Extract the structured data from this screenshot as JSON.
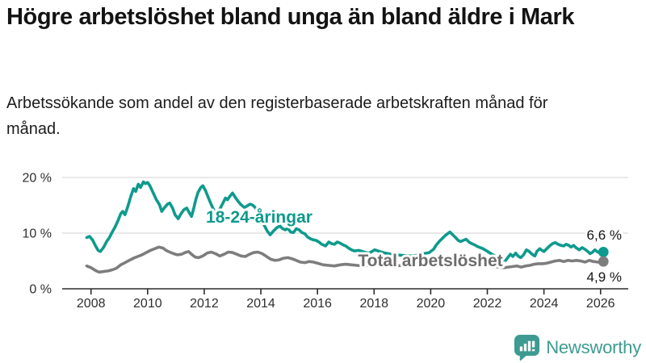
{
  "header": {
    "title": "Högre arbetslöshet bland unga än bland äldre i Mark",
    "subtitle": "Arbetssökande som andel av den registerbaserade arbetskraften månad för månad."
  },
  "footer": {
    "brand": "Newsworthy"
  },
  "colors": {
    "youth_line": "#0e9a8d",
    "total_line": "#7d7d7d",
    "total_label": "#6d6d6d",
    "grid": "#dadada",
    "axis": "#2b2b2b",
    "logo_teal": "#3d9b91"
  },
  "chart_data": {
    "type": "line",
    "title": "Högre arbetslöshet bland unga än bland äldre i Mark",
    "xlabel": "",
    "ylabel": "",
    "grid": "horizontal",
    "legend_position": "inline-labels",
    "x_axis": {
      "ticks": [
        2008,
        2010,
        2012,
        2014,
        2016,
        2018,
        2020,
        2022,
        2024,
        2026
      ],
      "range": [
        2007.5,
        2027.0
      ]
    },
    "y_axis": {
      "tick_labels": [
        "20 %",
        "10 %",
        "0 %"
      ],
      "tick_values": [
        20,
        10,
        0
      ],
      "unit": "%",
      "range": [
        0,
        21.5
      ]
    },
    "series": [
      {
        "name": "18-24-åringar",
        "color": "#0e9a8d",
        "end_label": "6,6 %",
        "end_value": 6.6,
        "points": [
          [
            2007.85,
            9.2
          ],
          [
            2007.95,
            9.4
          ],
          [
            2008.05,
            8.8
          ],
          [
            2008.15,
            7.8
          ],
          [
            2008.25,
            6.9
          ],
          [
            2008.33,
            6.7
          ],
          [
            2008.45,
            7.5
          ],
          [
            2008.55,
            8.5
          ],
          [
            2008.65,
            9.2
          ],
          [
            2008.75,
            10.2
          ],
          [
            2008.85,
            11.1
          ],
          [
            2008.95,
            12.2
          ],
          [
            2009.05,
            13.5
          ],
          [
            2009.12,
            13.9
          ],
          [
            2009.2,
            13.3
          ],
          [
            2009.3,
            14.8
          ],
          [
            2009.4,
            16.5
          ],
          [
            2009.5,
            18.0
          ],
          [
            2009.58,
            17.5
          ],
          [
            2009.67,
            18.8
          ],
          [
            2009.75,
            18.2
          ],
          [
            2009.85,
            19.2
          ],
          [
            2009.92,
            18.9
          ],
          [
            2010.0,
            19.1
          ],
          [
            2010.08,
            18.5
          ],
          [
            2010.2,
            17.2
          ],
          [
            2010.3,
            16.1
          ],
          [
            2010.42,
            15.1
          ],
          [
            2010.5,
            13.9
          ],
          [
            2010.6,
            14.6
          ],
          [
            2010.7,
            15.2
          ],
          [
            2010.78,
            15.4
          ],
          [
            2010.88,
            14.5
          ],
          [
            2010.97,
            13.3
          ],
          [
            2011.08,
            12.6
          ],
          [
            2011.17,
            13.4
          ],
          [
            2011.28,
            14.2
          ],
          [
            2011.38,
            14.5
          ],
          [
            2011.48,
            13.6
          ],
          [
            2011.55,
            13.0
          ],
          [
            2011.63,
            14.5
          ],
          [
            2011.7,
            16.0
          ],
          [
            2011.78,
            17.3
          ],
          [
            2011.88,
            18.2
          ],
          [
            2011.95,
            18.5
          ],
          [
            2012.05,
            17.6
          ],
          [
            2012.15,
            16.3
          ],
          [
            2012.25,
            15.1
          ],
          [
            2012.35,
            14.0
          ],
          [
            2012.45,
            13.5
          ],
          [
            2012.55,
            14.3
          ],
          [
            2012.65,
            15.3
          ],
          [
            2012.75,
            16.3
          ],
          [
            2012.82,
            16.0
          ],
          [
            2012.9,
            16.6
          ],
          [
            2013.0,
            17.2
          ],
          [
            2013.1,
            16.4
          ],
          [
            2013.2,
            15.7
          ],
          [
            2013.3,
            15.1
          ],
          [
            2013.42,
            14.6
          ],
          [
            2013.52,
            14.9
          ],
          [
            2013.62,
            15.2
          ],
          [
            2013.72,
            15.0
          ],
          [
            2013.82,
            14.5
          ],
          [
            2013.92,
            13.4
          ],
          [
            2014.02,
            12.3
          ],
          [
            2014.12,
            11.4
          ],
          [
            2014.22,
            10.4
          ],
          [
            2014.33,
            9.7
          ],
          [
            2014.45,
            10.4
          ],
          [
            2014.55,
            10.9
          ],
          [
            2014.67,
            11.3
          ],
          [
            2014.77,
            10.8
          ],
          [
            2014.87,
            10.6
          ],
          [
            2014.95,
            10.9
          ],
          [
            2015.05,
            10.2
          ],
          [
            2015.15,
            10.1
          ],
          [
            2015.25,
            10.8
          ],
          [
            2015.35,
            10.6
          ],
          [
            2015.45,
            10.1
          ],
          [
            2015.55,
            9.9
          ],
          [
            2015.65,
            9.3
          ],
          [
            2015.75,
            9.0
          ],
          [
            2015.85,
            8.8
          ],
          [
            2015.95,
            8.7
          ],
          [
            2016.05,
            8.4
          ],
          [
            2016.15,
            8.0
          ],
          [
            2016.28,
            7.7
          ],
          [
            2016.4,
            8.4
          ],
          [
            2016.5,
            8.1
          ],
          [
            2016.6,
            8.0
          ],
          [
            2016.7,
            8.4
          ],
          [
            2016.8,
            8.2
          ],
          [
            2016.9,
            7.9
          ],
          [
            2017.0,
            7.7
          ],
          [
            2017.1,
            7.3
          ],
          [
            2017.2,
            7.0
          ],
          [
            2017.3,
            6.8
          ],
          [
            2017.45,
            6.9
          ],
          [
            2017.6,
            6.7
          ],
          [
            2017.72,
            6.5
          ],
          [
            2017.82,
            6.4
          ],
          [
            2017.92,
            6.7
          ],
          [
            2018.02,
            7.0
          ],
          [
            2018.2,
            6.7
          ],
          [
            2018.4,
            6.4
          ],
          [
            2018.6,
            6.2
          ],
          [
            2018.8,
            6.1
          ],
          [
            2019.0,
            6.0
          ],
          [
            2019.25,
            5.9
          ],
          [
            2019.5,
            6.0
          ],
          [
            2019.75,
            6.3
          ],
          [
            2019.95,
            6.5
          ],
          [
            2020.1,
            7.1
          ],
          [
            2020.2,
            7.9
          ],
          [
            2020.3,
            8.5
          ],
          [
            2020.42,
            9.1
          ],
          [
            2020.52,
            9.6
          ],
          [
            2020.6,
            9.9
          ],
          [
            2020.68,
            10.2
          ],
          [
            2020.78,
            9.7
          ],
          [
            2020.88,
            9.2
          ],
          [
            2020.97,
            8.7
          ],
          [
            2021.05,
            8.5
          ],
          [
            2021.15,
            8.7
          ],
          [
            2021.25,
            8.9
          ],
          [
            2021.35,
            8.4
          ],
          [
            2021.45,
            8.1
          ],
          [
            2021.55,
            7.9
          ],
          [
            2021.65,
            7.6
          ],
          [
            2021.75,
            7.4
          ],
          [
            2021.85,
            7.2
          ],
          [
            2021.95,
            6.9
          ],
          [
            2022.1,
            6.4
          ],
          [
            2022.3,
            5.8
          ],
          [
            2022.5,
            5.3
          ],
          [
            2022.65,
            5.1
          ],
          [
            2022.75,
            5.8
          ],
          [
            2022.82,
            6.2
          ],
          [
            2022.9,
            5.8
          ],
          [
            2023.0,
            6.4
          ],
          [
            2023.08,
            5.9
          ],
          [
            2023.18,
            5.6
          ],
          [
            2023.28,
            6.1
          ],
          [
            2023.38,
            7.0
          ],
          [
            2023.48,
            6.7
          ],
          [
            2023.58,
            6.2
          ],
          [
            2023.68,
            5.9
          ],
          [
            2023.75,
            6.7
          ],
          [
            2023.85,
            7.2
          ],
          [
            2023.93,
            6.9
          ],
          [
            2024.0,
            6.7
          ],
          [
            2024.1,
            7.2
          ],
          [
            2024.2,
            7.7
          ],
          [
            2024.3,
            8.1
          ],
          [
            2024.4,
            8.3
          ],
          [
            2024.5,
            8.0
          ],
          [
            2024.6,
            7.8
          ],
          [
            2024.7,
            7.7
          ],
          [
            2024.78,
            8.0
          ],
          [
            2024.88,
            7.8
          ],
          [
            2024.95,
            7.5
          ],
          [
            2025.05,
            7.8
          ],
          [
            2025.15,
            7.3
          ],
          [
            2025.25,
            7.0
          ],
          [
            2025.35,
            7.4
          ],
          [
            2025.45,
            7.1
          ],
          [
            2025.55,
            6.7
          ],
          [
            2025.63,
            6.3
          ],
          [
            2025.72,
            6.6
          ],
          [
            2025.8,
            7.0
          ],
          [
            2025.9,
            6.6
          ],
          [
            2026.0,
            6.4
          ],
          [
            2026.1,
            6.6
          ]
        ]
      },
      {
        "name": "Total arbetslöshet",
        "color": "#7d7d7d",
        "end_label": "4,9 %",
        "end_value": 4.9,
        "points": [
          [
            2007.85,
            4.1
          ],
          [
            2008.0,
            3.8
          ],
          [
            2008.15,
            3.3
          ],
          [
            2008.28,
            3.0
          ],
          [
            2008.45,
            3.1
          ],
          [
            2008.6,
            3.2
          ],
          [
            2008.75,
            3.4
          ],
          [
            2008.9,
            3.7
          ],
          [
            2009.05,
            4.3
          ],
          [
            2009.2,
            4.7
          ],
          [
            2009.35,
            5.1
          ],
          [
            2009.5,
            5.5
          ],
          [
            2009.65,
            5.8
          ],
          [
            2009.8,
            6.1
          ],
          [
            2009.95,
            6.5
          ],
          [
            2010.1,
            6.9
          ],
          [
            2010.25,
            7.2
          ],
          [
            2010.4,
            7.5
          ],
          [
            2010.55,
            7.3
          ],
          [
            2010.65,
            6.9
          ],
          [
            2010.78,
            6.6
          ],
          [
            2010.92,
            6.3
          ],
          [
            2011.05,
            6.1
          ],
          [
            2011.2,
            6.2
          ],
          [
            2011.32,
            6.5
          ],
          [
            2011.45,
            6.7
          ],
          [
            2011.55,
            6.2
          ],
          [
            2011.68,
            5.7
          ],
          [
            2011.8,
            5.6
          ],
          [
            2011.95,
            5.9
          ],
          [
            2012.1,
            6.4
          ],
          [
            2012.25,
            6.6
          ],
          [
            2012.4,
            6.3
          ],
          [
            2012.55,
            5.9
          ],
          [
            2012.7,
            6.2
          ],
          [
            2012.85,
            6.6
          ],
          [
            2013.0,
            6.5
          ],
          [
            2013.15,
            6.2
          ],
          [
            2013.3,
            5.9
          ],
          [
            2013.45,
            5.8
          ],
          [
            2013.6,
            6.2
          ],
          [
            2013.75,
            6.5
          ],
          [
            2013.9,
            6.6
          ],
          [
            2014.05,
            6.3
          ],
          [
            2014.2,
            5.8
          ],
          [
            2014.35,
            5.3
          ],
          [
            2014.5,
            5.1
          ],
          [
            2014.65,
            5.2
          ],
          [
            2014.8,
            5.5
          ],
          [
            2014.95,
            5.6
          ],
          [
            2015.1,
            5.4
          ],
          [
            2015.25,
            5.1
          ],
          [
            2015.4,
            4.8
          ],
          [
            2015.55,
            4.7
          ],
          [
            2015.7,
            4.9
          ],
          [
            2015.85,
            4.8
          ],
          [
            2016.0,
            4.6
          ],
          [
            2016.2,
            4.3
          ],
          [
            2016.4,
            4.2
          ],
          [
            2016.6,
            4.1
          ],
          [
            2016.8,
            4.3
          ],
          [
            2017.0,
            4.4
          ],
          [
            2017.2,
            4.3
          ],
          [
            2017.4,
            4.2
          ],
          [
            2017.6,
            4.1
          ],
          [
            2017.8,
            4.2
          ],
          [
            2018.0,
            4.3
          ],
          [
            2018.25,
            4.2
          ],
          [
            2018.5,
            4.1
          ],
          [
            2018.75,
            4.1
          ],
          [
            2019.0,
            4.2
          ],
          [
            2019.25,
            4.2
          ],
          [
            2019.5,
            4.3
          ],
          [
            2019.75,
            4.3
          ],
          [
            2020.0,
            4.5
          ],
          [
            2020.2,
            5.0
          ],
          [
            2020.4,
            5.4
          ],
          [
            2020.6,
            5.6
          ],
          [
            2020.8,
            5.5
          ],
          [
            2021.0,
            5.3
          ],
          [
            2021.2,
            5.1
          ],
          [
            2021.4,
            4.9
          ],
          [
            2021.6,
            4.7
          ],
          [
            2021.8,
            4.5
          ],
          [
            2022.0,
            4.3
          ],
          [
            2022.2,
            4.1
          ],
          [
            2022.4,
            3.9
          ],
          [
            2022.6,
            3.8
          ],
          [
            2022.75,
            3.9
          ],
          [
            2022.9,
            4.0
          ],
          [
            2023.05,
            4.1
          ],
          [
            2023.2,
            3.9
          ],
          [
            2023.35,
            4.1
          ],
          [
            2023.5,
            4.2
          ],
          [
            2023.65,
            4.4
          ],
          [
            2023.8,
            4.5
          ],
          [
            2023.95,
            4.5
          ],
          [
            2024.1,
            4.6
          ],
          [
            2024.25,
            4.8
          ],
          [
            2024.4,
            5.0
          ],
          [
            2024.55,
            5.1
          ],
          [
            2024.7,
            4.9
          ],
          [
            2024.85,
            5.1
          ],
          [
            2025.0,
            5.0
          ],
          [
            2025.15,
            5.1
          ],
          [
            2025.3,
            5.0
          ],
          [
            2025.45,
            4.8
          ],
          [
            2025.6,
            5.1
          ],
          [
            2025.75,
            4.9
          ],
          [
            2025.9,
            4.8
          ],
          [
            2026.0,
            4.8
          ],
          [
            2026.1,
            4.9
          ]
        ]
      }
    ]
  }
}
